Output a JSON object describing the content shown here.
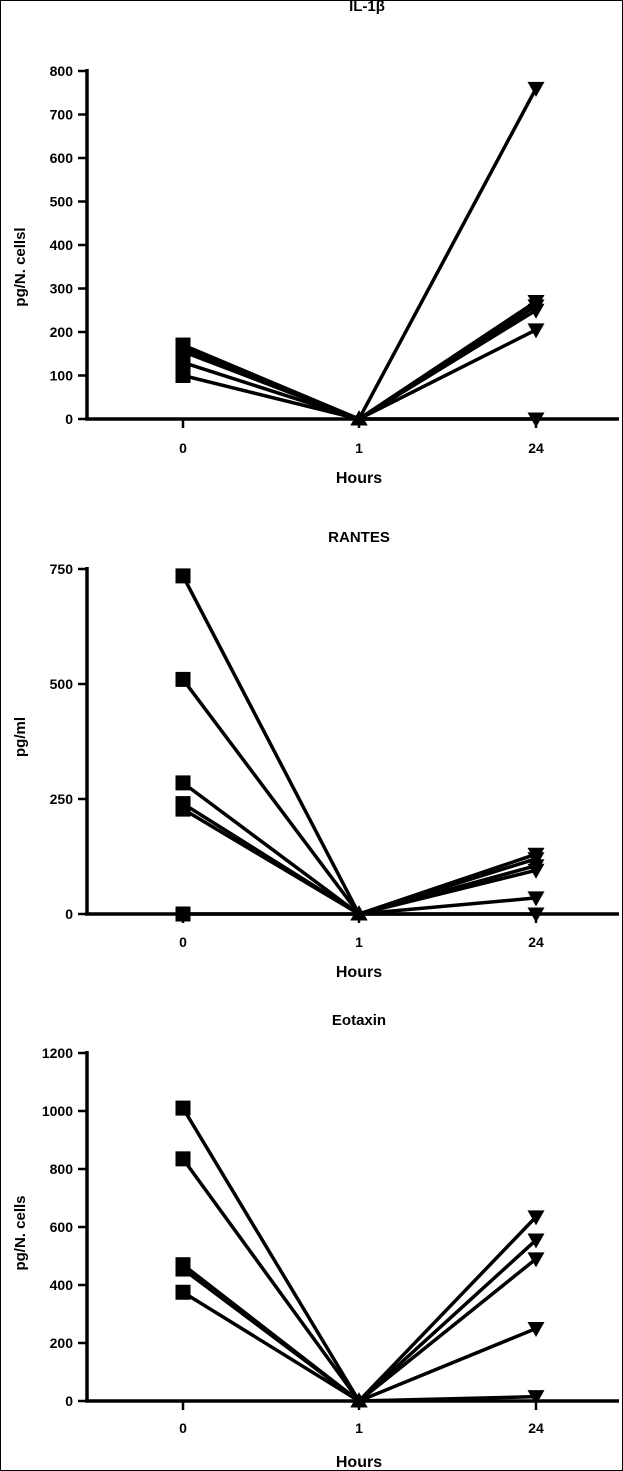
{
  "chart_data": [
    {
      "type": "line",
      "title": "IL-1β",
      "xlabel": "Hours",
      "ylabel": "pg/N. cellsl",
      "categories": [
        "0",
        "1",
        "24"
      ],
      "ylim": [
        0,
        800
      ],
      "yticks": [
        0,
        100,
        200,
        300,
        400,
        500,
        600,
        700,
        800
      ],
      "markers": [
        "square",
        "triangle-up",
        "triangle-down"
      ],
      "series": [
        {
          "values": [
            170,
            0,
            760
          ]
        },
        {
          "values": [
            165,
            0,
            270
          ]
        },
        {
          "values": [
            155,
            0,
            260
          ]
        },
        {
          "values": [
            130,
            0,
            250
          ]
        },
        {
          "values": [
            100,
            0,
            205
          ]
        },
        {
          "values": [
            160,
            0,
            0
          ]
        }
      ]
    },
    {
      "type": "line",
      "title": "RANTES",
      "xlabel": "Hours",
      "ylabel": "pg/ml",
      "categories": [
        "0",
        "1",
        "24"
      ],
      "ylim": [
        0,
        750
      ],
      "yticks": [
        0,
        250,
        500,
        750
      ],
      "markers": [
        "square",
        "triangle-up",
        "triangle-down"
      ],
      "series": [
        {
          "values": [
            735,
            0,
            130
          ]
        },
        {
          "values": [
            510,
            0,
            120
          ]
        },
        {
          "values": [
            285,
            0,
            105
          ]
        },
        {
          "values": [
            240,
            0,
            95
          ]
        },
        {
          "values": [
            228,
            0,
            35
          ]
        },
        {
          "values": [
            0,
            0,
            0
          ]
        }
      ]
    },
    {
      "type": "line",
      "title": "Eotaxin",
      "xlabel": "Hours",
      "ylabel": "pg/N. cells",
      "categories": [
        "0",
        "1",
        "24"
      ],
      "ylim": [
        0,
        1200
      ],
      "yticks": [
        0,
        200,
        400,
        600,
        800,
        1000,
        1200
      ],
      "markers": [
        "square",
        "triangle-up",
        "triangle-down"
      ],
      "series": [
        {
          "values": [
            1010,
            0,
            635
          ]
        },
        {
          "values": [
            835,
            0,
            555
          ]
        },
        {
          "values": [
            470,
            0,
            490
          ]
        },
        {
          "values": [
            455,
            0,
            250
          ]
        },
        {
          "values": [
            375,
            0,
            15
          ]
        }
      ]
    }
  ]
}
